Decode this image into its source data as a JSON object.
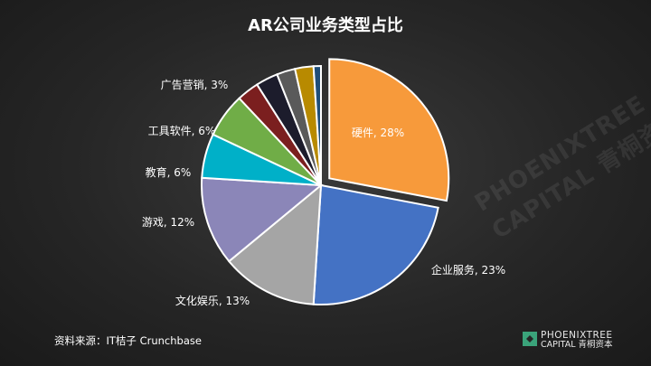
{
  "chart_data": {
    "type": "pie",
    "title": "AR公司业务类型占比",
    "slices": [
      {
        "label": "硬件, 28%",
        "value": 28,
        "color": "#f79a3b",
        "exploded": true
      },
      {
        "label": "企业服务, 23%",
        "value": 23,
        "color": "#4472c4",
        "exploded": false
      },
      {
        "label": "文化娱乐, 13%",
        "value": 13,
        "color": "#a5a5a5",
        "exploded": false
      },
      {
        "label": "游戏, 12%",
        "value": 12,
        "color": "#8b86b8",
        "exploded": false
      },
      {
        "label": "教育, 6%",
        "value": 6,
        "color": "#00b0c8",
        "exploded": false
      },
      {
        "label": "工具软件, 6%",
        "value": 6,
        "color": "#70ad47",
        "exploded": false
      },
      {
        "label": "广告营销, 3%",
        "value": 3,
        "color": "#7b1f1f",
        "exploded": false
      },
      {
        "label": "",
        "value": 3,
        "color": "#1c1c2c",
        "exploded": false
      },
      {
        "label": "",
        "value": 2.5,
        "color": "#5a5a5a",
        "exploded": false
      },
      {
        "label": "",
        "value": 2.5,
        "color": "#b88a00",
        "exploded": false
      },
      {
        "label": "",
        "value": 1,
        "color": "#1f4e79",
        "exploded": false
      }
    ]
  },
  "footer": {
    "source": "资料来源：IT桔子  Crunchbase",
    "logo_line1": "PHOENIXTREE",
    "logo_line2": "CAPITAL 青桐资本",
    "watermark_line1": "PHOENIXTREE",
    "watermark_line2": "CAPITAL 青桐资本"
  }
}
